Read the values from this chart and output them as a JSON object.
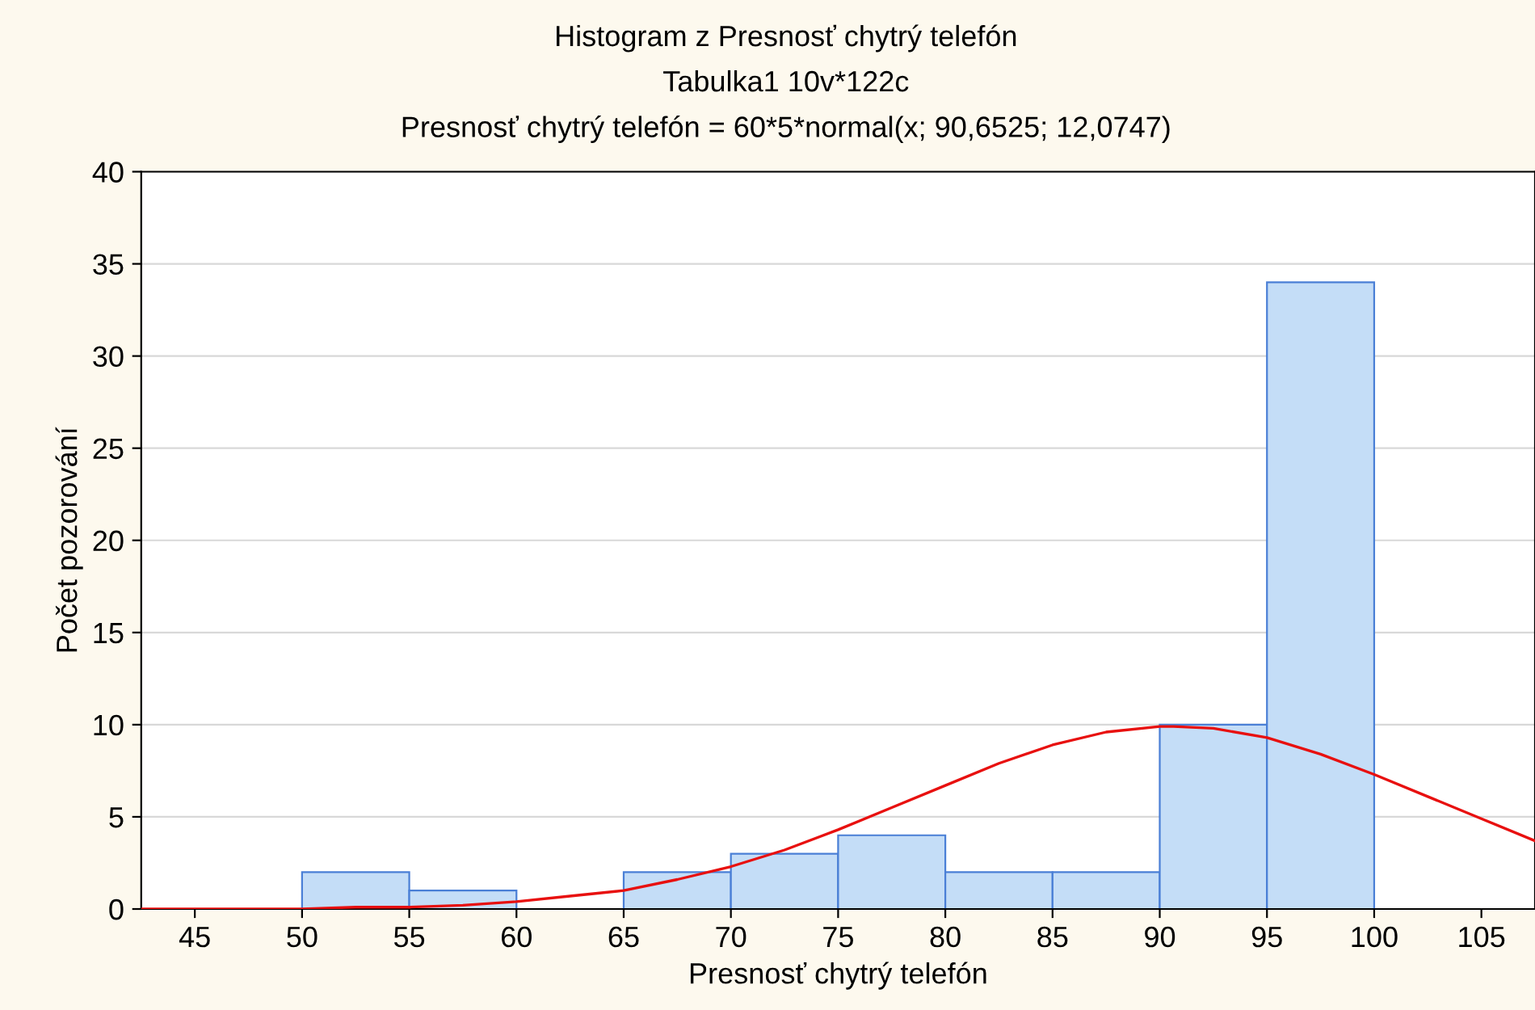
{
  "chart_data": {
    "type": "histogram",
    "title": "Histogram z Presnosť chytrý telefón",
    "subtitle": "Tabulka1 10v*122c",
    "annotations": [
      "Presnosť chytrý telefón = 60*5*normal(x; 90,6525; 12,0747)"
    ],
    "xlabel": "Presnosť chytrý telefón",
    "ylabel": "Počet pozorování",
    "bins": [
      50,
      55,
      60,
      65,
      70,
      75,
      80,
      85,
      90,
      95,
      100
    ],
    "values": [
      2,
      1,
      0,
      2,
      3,
      4,
      2,
      2,
      10,
      34
    ],
    "color": "#c4ddf7",
    "series": [
      {
        "type": "line",
        "color": "#e8100f",
        "x": [
          42.5,
          45,
          47.5,
          50,
          52.5,
          55,
          57.5,
          60,
          62.5,
          65,
          67.5,
          70,
          72.5,
          75,
          77.5,
          80,
          82.5,
          85,
          87.5,
          90,
          90.65,
          92.5,
          95,
          97.5,
          100,
          102.5,
          105,
          107.5
        ],
        "values": [
          0.0,
          0.0,
          0.0,
          0.0,
          0.1,
          0.1,
          0.2,
          0.4,
          0.7,
          1.0,
          1.6,
          2.3,
          3.2,
          4.3,
          5.5,
          6.7,
          7.9,
          8.9,
          9.6,
          9.9,
          9.9,
          9.8,
          9.3,
          8.4,
          7.3,
          6.1,
          4.9,
          3.7
        ]
      }
    ],
    "xlim": [
      42.5,
      107.5
    ],
    "xticks": [
      45,
      50,
      55,
      60,
      65,
      70,
      75,
      80,
      85,
      90,
      95,
      100,
      105
    ],
    "ylim": [
      0,
      40
    ],
    "yticks": [
      0,
      5,
      10,
      15,
      20,
      25,
      30,
      35,
      40
    ],
    "grid": "y"
  }
}
